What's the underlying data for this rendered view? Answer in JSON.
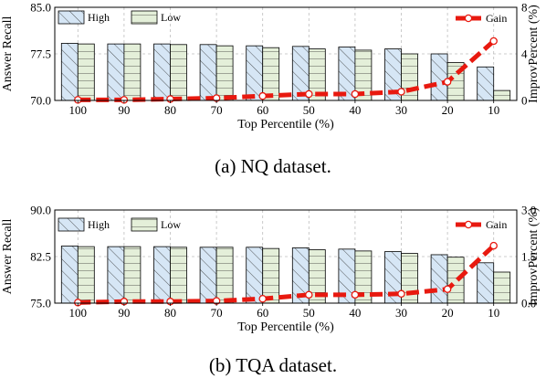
{
  "chart_data": [
    {
      "type": "bar",
      "caption": "(a)  NQ dataset.",
      "categories": [
        "100",
        "90",
        "80",
        "70",
        "60",
        "50",
        "40",
        "30",
        "20",
        "10"
      ],
      "xlabel": "Top Percentile (%)",
      "ylabel": "Answer Recall",
      "ylabel_right": "ImprovPercent (%)",
      "ylim": [
        70.0,
        85.0
      ],
      "yticks": [
        "70.0",
        "77.5",
        "85.0"
      ],
      "ytick_values": [
        70.0,
        77.5,
        85.0
      ],
      "ylim_right": [
        0,
        8
      ],
      "yticks_right": [
        "0",
        "4",
        "8"
      ],
      "ytick_values_right": [
        0,
        4,
        8
      ],
      "grid": true,
      "series": [
        {
          "name": "High",
          "axis": "left",
          "kind": "bar",
          "color": "#d6e6f5",
          "values": [
            79.2,
            79.1,
            79.1,
            79.0,
            78.8,
            78.7,
            78.6,
            78.3,
            77.5,
            75.4
          ]
        },
        {
          "name": "Low",
          "axis": "left",
          "kind": "bar",
          "color": "#e4efd9",
          "values": [
            79.1,
            79.1,
            79.0,
            78.8,
            78.5,
            78.3,
            78.1,
            77.5,
            76.1,
            71.6
          ]
        },
        {
          "name": "Gain",
          "axis": "right",
          "kind": "line",
          "color": "#e8190f",
          "values": [
            0.05,
            0.05,
            0.12,
            0.2,
            0.38,
            0.55,
            0.55,
            0.75,
            1.6,
            5.1
          ]
        }
      ],
      "legend": {
        "high": "High",
        "low": "Low",
        "gain": "Gain"
      }
    },
    {
      "type": "bar",
      "caption": "(b)  TQA dataset.",
      "categories": [
        "100",
        "90",
        "80",
        "70",
        "60",
        "50",
        "40",
        "30",
        "20",
        "10"
      ],
      "xlabel": "Top Percentile (%)",
      "ylabel": "Answer Recall",
      "ylabel_right": "ImprovPercent (%)",
      "ylim": [
        75.0,
        90.0
      ],
      "yticks": [
        "75.0",
        "82.5",
        "90.0"
      ],
      "ytick_values": [
        75.0,
        82.5,
        90.0
      ],
      "ylim_right": [
        0,
        3
      ],
      "yticks_right": [
        "0.0",
        "1.5",
        "3.0"
      ],
      "ytick_values_right": [
        0,
        1.5,
        3.0
      ],
      "grid": true,
      "series": [
        {
          "name": "High",
          "axis": "left",
          "kind": "bar",
          "color": "#d6e6f5",
          "values": [
            84.2,
            84.1,
            84.1,
            84.0,
            84.0,
            83.9,
            83.7,
            83.3,
            82.8,
            81.5
          ]
        },
        {
          "name": "Low",
          "axis": "left",
          "kind": "bar",
          "color": "#e4efd9",
          "values": [
            84.1,
            84.1,
            84.0,
            84.0,
            83.8,
            83.6,
            83.4,
            83.0,
            82.4,
            80.0
          ]
        },
        {
          "name": "Gain",
          "axis": "right",
          "kind": "line",
          "color": "#e8190f",
          "values": [
            0.02,
            0.05,
            0.05,
            0.07,
            0.14,
            0.27,
            0.27,
            0.3,
            0.45,
            1.85
          ]
        }
      ],
      "legend": {
        "high": "High",
        "low": "Low",
        "gain": "Gain"
      }
    }
  ]
}
